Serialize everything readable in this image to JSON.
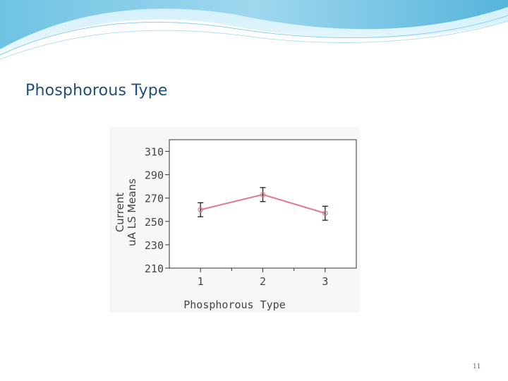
{
  "slide": {
    "title": "Phosphorous Type",
    "page_number": "11"
  },
  "colors": {
    "line": "#e07b8a",
    "title": "#1f4e79",
    "axis_text": "#444444"
  },
  "chart_data": {
    "type": "line",
    "title": "",
    "xlabel": "Phosphorous Type",
    "ylabel_line1": "Current",
    "ylabel_line2": "uA LS Means",
    "categories": [
      "1",
      "2",
      "3"
    ],
    "series": [
      {
        "values": [
          260,
          273,
          257
        ],
        "error_low": [
          254,
          267,
          251
        ],
        "error_high": [
          266,
          279,
          263
        ]
      }
    ],
    "ylim": [
      210,
      320
    ],
    "yticks": [
      210,
      230,
      250,
      270,
      290,
      310
    ],
    "grid": false
  }
}
